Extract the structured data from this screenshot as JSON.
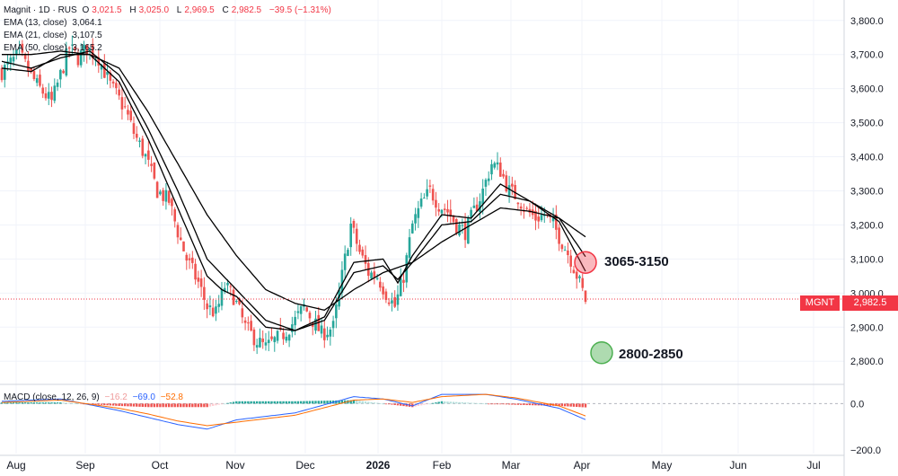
{
  "legend": {
    "title": "Magnit · 1D · RUS",
    "o_label": "O",
    "o": "3,021.5",
    "h_label": "H",
    "h": "3,025.0",
    "l_label": "L",
    "l": "2,969.5",
    "c_label": "C",
    "c": "2,982.5",
    "chg": "−39.5 (−1.31%)",
    "ema13_label": "EMA (13, close)",
    "ema13": "3,064.1",
    "ema21_label": "EMA (21, close)",
    "ema21": "3,107.5",
    "ema50_label": "EMA (50, close)",
    "ema50": "3,165.2",
    "macd_label": "MACD (close, 12, 26, 9)",
    "macd_hist": "−16.2",
    "macd_line": "−69.0",
    "macd_signal": "−52.8"
  },
  "price_tag": {
    "ticker": "MGNT",
    "value": "2,982.5"
  },
  "annotations": [
    {
      "label": "3065-3150",
      "color": "#f23645",
      "low": 3065,
      "high": 3150,
      "month": "Apr"
    },
    {
      "label": "2800-2850",
      "color": "#4caf50",
      "low": 2800,
      "high": 2850,
      "month": "Apr"
    }
  ],
  "colors": {
    "up": "#26a69a",
    "down": "#ef5350",
    "ema": "#000000",
    "macd": "#2962ff",
    "signal": "#ff6d00",
    "hist_up": "#26a69a",
    "hist_down": "#ef5350"
  },
  "chart_data": {
    "type": "candlestick",
    "title": "Magnit · 1D · RUS",
    "xlabel": "",
    "ylabel": "",
    "ylim": [
      2740,
      3860
    ],
    "y_ticks": [
      2800,
      2900,
      3000,
      3100,
      3200,
      3300,
      3400,
      3500,
      3600,
      3700,
      3800
    ],
    "y_tick_labels": [
      "2,800.0",
      "2,900.0",
      "3,000.0",
      "3,100.0",
      "3,200.0",
      "3,300.0",
      "3,400.0",
      "3,500.0",
      "3,600.0",
      "3,700.0",
      "3,800.0"
    ],
    "x_ticks": [
      "Aug",
      "Sep",
      "Oct",
      "Nov",
      "Dec",
      "2026",
      "Feb",
      "Mar",
      "Apr",
      "May",
      "Jun",
      "Jul"
    ],
    "close_path": [
      [
        0,
        3650
      ],
      [
        6,
        3700
      ],
      [
        12,
        3610
      ],
      [
        17,
        3560
      ],
      [
        23,
        3720
      ],
      [
        26,
        3690
      ],
      [
        29,
        3720
      ],
      [
        33,
        3690
      ],
      [
        37,
        3610
      ],
      [
        42,
        3540
      ],
      [
        45,
        3470
      ],
      [
        49,
        3400
      ],
      [
        53,
        3300
      ],
      [
        57,
        3270
      ],
      [
        60,
        3180
      ],
      [
        63,
        3100
      ],
      [
        67,
        3030
      ],
      [
        70,
        2960
      ],
      [
        73,
        2940
      ],
      [
        76,
        3020
      ],
      [
        79,
        2990
      ],
      [
        83,
        2900
      ],
      [
        87,
        2860
      ],
      [
        90,
        2840
      ],
      [
        93,
        2860
      ],
      [
        96,
        2880
      ],
      [
        100,
        2920
      ],
      [
        103,
        2960
      ],
      [
        106,
        2920
      ],
      [
        109,
        2880
      ],
      [
        113,
        2900
      ],
      [
        116,
        3050
      ],
      [
        119,
        3200
      ],
      [
        122,
        3120
      ],
      [
        125,
        3060
      ],
      [
        128,
        3050
      ],
      [
        131,
        3000
      ],
      [
        134,
        2960
      ],
      [
        137,
        3050
      ],
      [
        140,
        3200
      ],
      [
        143,
        3260
      ],
      [
        146,
        3300
      ],
      [
        149,
        3260
      ],
      [
        152,
        3240
      ],
      [
        155,
        3200
      ],
      [
        158,
        3180
      ],
      [
        161,
        3240
      ],
      [
        164,
        3300
      ],
      [
        167,
        3380
      ],
      [
        170,
        3360
      ],
      [
        173,
        3300
      ],
      [
        176,
        3280
      ],
      [
        179,
        3240
      ],
      [
        182,
        3220
      ],
      [
        185,
        3230
      ],
      [
        188,
        3200
      ],
      [
        191,
        3150
      ],
      [
        194,
        3100
      ],
      [
        197,
        3030
      ],
      [
        199,
        2980
      ]
    ],
    "ema_13": [
      [
        0,
        3660
      ],
      [
        10,
        3650
      ],
      [
        20,
        3700
      ],
      [
        30,
        3700
      ],
      [
        40,
        3620
      ],
      [
        50,
        3450
      ],
      [
        60,
        3250
      ],
      [
        70,
        3050
      ],
      [
        75,
        3010
      ],
      [
        80,
        2990
      ],
      [
        90,
        2900
      ],
      [
        100,
        2890
      ],
      [
        110,
        2930
      ],
      [
        120,
        3090
      ],
      [
        130,
        3100
      ],
      [
        135,
        3030
      ],
      [
        140,
        3110
      ],
      [
        150,
        3230
      ],
      [
        160,
        3220
      ],
      [
        170,
        3320
      ],
      [
        180,
        3270
      ],
      [
        190,
        3210
      ],
      [
        199,
        3064
      ]
    ],
    "ema_21": [
      [
        0,
        3680
      ],
      [
        10,
        3660
      ],
      [
        20,
        3690
      ],
      [
        30,
        3710
      ],
      [
        40,
        3640
      ],
      [
        50,
        3480
      ],
      [
        60,
        3300
      ],
      [
        70,
        3100
      ],
      [
        80,
        3010
      ],
      [
        90,
        2920
      ],
      [
        100,
        2890
      ],
      [
        110,
        2920
      ],
      [
        120,
        3060
      ],
      [
        130,
        3080
      ],
      [
        135,
        3040
      ],
      [
        140,
        3090
      ],
      [
        150,
        3200
      ],
      [
        160,
        3210
      ],
      [
        170,
        3290
      ],
      [
        180,
        3270
      ],
      [
        190,
        3220
      ],
      [
        199,
        3107
      ]
    ],
    "ema_50": [
      [
        0,
        3700
      ],
      [
        10,
        3700
      ],
      [
        20,
        3710
      ],
      [
        30,
        3700
      ],
      [
        40,
        3660
      ],
      [
        50,
        3530
      ],
      [
        60,
        3380
      ],
      [
        70,
        3230
      ],
      [
        80,
        3110
      ],
      [
        90,
        3010
      ],
      [
        100,
        2970
      ],
      [
        110,
        2950
      ],
      [
        120,
        3010
      ],
      [
        130,
        3060
      ],
      [
        140,
        3090
      ],
      [
        150,
        3150
      ],
      [
        160,
        3200
      ],
      [
        170,
        3250
      ],
      [
        180,
        3240
      ],
      [
        190,
        3220
      ],
      [
        199,
        3165
      ]
    ],
    "macd": {
      "ylim": [
        -215,
        75
      ],
      "y_ticks": [
        0,
        -200
      ],
      "y_tick_labels": [
        "0.0",
        "−200.0"
      ],
      "macd_line": [
        [
          0,
          10
        ],
        [
          20,
          20
        ],
        [
          40,
          -30
        ],
        [
          50,
          -60
        ],
        [
          60,
          -90
        ],
        [
          70,
          -110
        ],
        [
          80,
          -70
        ],
        [
          100,
          -40
        ],
        [
          120,
          30
        ],
        [
          130,
          20
        ],
        [
          140,
          -10
        ],
        [
          150,
          40
        ],
        [
          165,
          40
        ],
        [
          175,
          20
        ],
        [
          190,
          -20
        ],
        [
          199,
          -69
        ]
      ],
      "signal_line": [
        [
          0,
          5
        ],
        [
          20,
          15
        ],
        [
          40,
          -20
        ],
        [
          50,
          -45
        ],
        [
          60,
          -75
        ],
        [
          70,
          -95
        ],
        [
          80,
          -80
        ],
        [
          100,
          -50
        ],
        [
          120,
          15
        ],
        [
          130,
          20
        ],
        [
          140,
          5
        ],
        [
          150,
          30
        ],
        [
          165,
          40
        ],
        [
          175,
          25
        ],
        [
          190,
          -10
        ],
        [
          199,
          -52.8
        ]
      ]
    }
  }
}
